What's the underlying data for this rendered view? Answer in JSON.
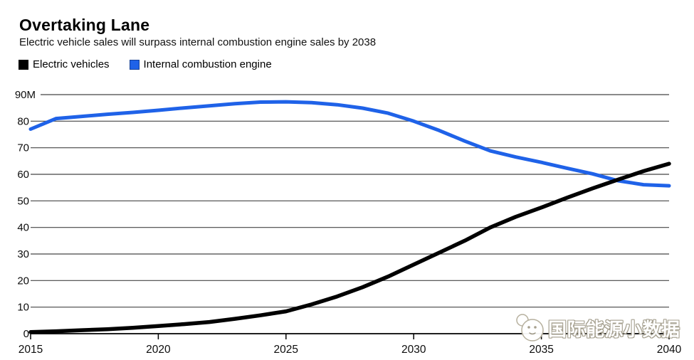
{
  "header": {
    "title": "Overtaking Lane",
    "subtitle": "Electric vehicle sales will surpass internal combustion engine sales by 2038"
  },
  "legend": {
    "position": "top-left",
    "items": [
      {
        "label": "Electric vehicles",
        "color": "#000000"
      },
      {
        "label": "Internal combustion engine",
        "color": "#1f62e8"
      }
    ]
  },
  "chart_data": {
    "type": "line",
    "title": "Overtaking Lane",
    "subtitle": "Electric vehicle sales will surpass internal combustion engine sales by 2038",
    "xlabel": "",
    "ylabel": "",
    "x": [
      2015,
      2016,
      2017,
      2018,
      2019,
      2020,
      2021,
      2022,
      2023,
      2024,
      2025,
      2026,
      2027,
      2028,
      2029,
      2030,
      2031,
      2032,
      2033,
      2034,
      2035,
      2036,
      2037,
      2038,
      2039,
      2040
    ],
    "series": [
      {
        "name": "Electric vehicles",
        "color": "#000000",
        "values": [
          0.6,
          0.9,
          1.3,
          1.7,
          2.2,
          2.9,
          3.6,
          4.4,
          5.6,
          6.9,
          8.4,
          11.0,
          14.0,
          17.5,
          21.5,
          26.0,
          30.5,
          35.0,
          40.0,
          44.0,
          47.5,
          51.2,
          54.7,
          58.0,
          61.2,
          64.0
        ]
      },
      {
        "name": "Internal combustion engine",
        "color": "#1f62e8",
        "values": [
          77.0,
          81.0,
          81.8,
          82.6,
          83.3,
          84.1,
          85.0,
          85.8,
          86.6,
          87.2,
          87.3,
          87.0,
          86.2,
          84.9,
          83.0,
          80.0,
          76.5,
          72.5,
          68.8,
          66.5,
          64.5,
          62.3,
          60.2,
          57.6,
          56.1,
          55.7
        ]
      }
    ],
    "xlim": [
      2015,
      2040
    ],
    "ylim": [
      0,
      90
    ],
    "xticks": [
      2015,
      2020,
      2025,
      2030,
      2035,
      2040
    ],
    "xtick_labels": [
      "2015",
      "2020",
      "2025",
      "2030",
      "2035",
      "2040"
    ],
    "yticks": [
      0,
      10,
      20,
      30,
      40,
      50,
      60,
      70,
      80,
      90
    ],
    "ytick_labels": [
      "0",
      "10",
      "20",
      "30",
      "40",
      "50",
      "60",
      "70",
      "80",
      "90M"
    ],
    "grid": true,
    "crossing_annotation": "lines cross between 2037 and 2038"
  },
  "watermark": {
    "text": "国际能源小数据"
  }
}
